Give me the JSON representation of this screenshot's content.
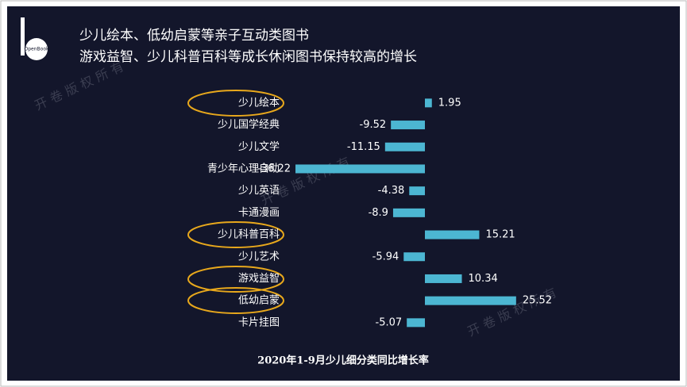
{
  "chart_data": {
    "type": "bar",
    "orientation": "horizontal",
    "title_lines": [
      "少儿绘本、低幼启蒙等亲子互动类图书",
      "游戏益智、少儿科普百科等成长休闲图书保持较高的增长"
    ],
    "caption": "2020年1-9月少儿细分类同比增长率",
    "logo": "OpenBook",
    "watermark": "开 卷 版 权 所 有",
    "categories": [
      "少儿绘本",
      "少儿国学经典",
      "少儿文学",
      "青少年心理自助",
      "少儿英语",
      "卡通漫画",
      "少儿科普百科",
      "少儿艺术",
      "游戏益智",
      "低幼启蒙",
      "卡片挂图"
    ],
    "values": [
      1.95,
      -9.52,
      -11.15,
      -36.22,
      -4.38,
      -8.9,
      15.21,
      -5.94,
      10.34,
      25.52,
      -5.07
    ],
    "color": "#4cb6d2",
    "xlim": [
      -40,
      30
    ]
  }
}
